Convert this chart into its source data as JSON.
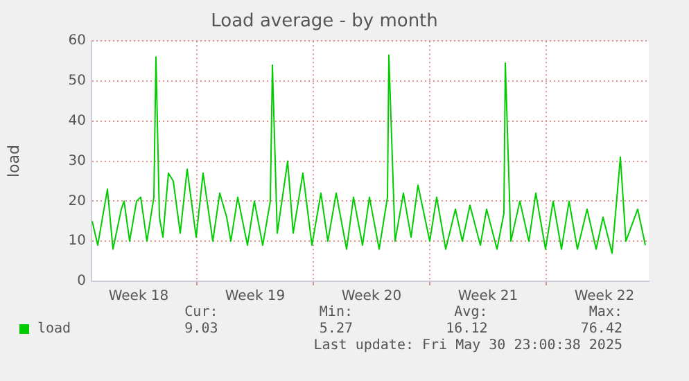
{
  "chart_data": {
    "type": "line",
    "title": "Load average - by month",
    "ylabel": "load",
    "x": [
      "2025-04-28T17:00",
      "2025-04-29T01:00",
      "2025-04-29T15:00",
      "2025-04-29T23:00",
      "2025-04-30T11:00",
      "2025-04-30T15:00",
      "2025-04-30T23:00",
      "2025-05-01T09:00",
      "2025-05-01T15:00",
      "2025-05-02T00:00",
      "2025-05-02T10:00",
      "2025-05-02T13:00",
      "2025-05-02T18:00",
      "2025-05-02T23:00",
      "2025-05-03T07:00",
      "2025-05-03T14:00",
      "2025-05-04T00:00",
      "2025-05-04T10:00",
      "2025-05-04T23:00",
      "2025-05-05T09:00",
      "2025-05-05T23:00",
      "2025-05-06T09:00",
      "2025-05-06T19:00",
      "2025-05-07T01:00",
      "2025-05-07T11:00",
      "2025-05-08T01:00",
      "2025-05-08T11:00",
      "2025-05-08T23:00",
      "2025-05-09T10:00",
      "2025-05-09T13:00",
      "2025-05-09T20:00",
      "2025-05-10T11:00",
      "2025-05-10T19:00",
      "2025-05-11T09:00",
      "2025-05-11T22:00",
      "2025-05-12T11:00",
      "2025-05-12T21:00",
      "2025-05-13T09:00",
      "2025-05-14T00:00",
      "2025-05-14T10:00",
      "2025-05-14T23:00",
      "2025-05-15T09:00",
      "2025-05-15T23:00",
      "2025-05-16T11:00",
      "2025-05-16T13:00",
      "2025-05-16T22:00",
      "2025-05-17T10:00",
      "2025-05-17T21:00",
      "2025-05-18T07:00",
      "2025-05-19T00:00",
      "2025-05-19T10:00",
      "2025-05-19T23:00",
      "2025-05-20T13:00",
      "2025-05-20T23:00",
      "2025-05-21T10:00",
      "2025-05-22T01:00",
      "2025-05-22T10:00",
      "2025-05-23T01:00",
      "2025-05-23T11:00",
      "2025-05-23T13:00",
      "2025-05-23T21:00",
      "2025-05-24T10:00",
      "2025-05-24T23:00",
      "2025-05-25T09:00",
      "2025-05-25T23:00",
      "2025-05-26T10:00",
      "2025-05-26T22:00",
      "2025-05-27T09:00",
      "2025-05-27T21:00",
      "2025-05-28T11:00",
      "2025-05-29T00:00",
      "2025-05-29T10:00",
      "2025-05-29T23:00",
      "2025-05-30T11:00",
      "2025-05-30T19:00",
      "2025-05-31T12:00",
      "2025-05-31T23:00"
    ],
    "series": [
      {
        "name": "load",
        "color": "#00cc00",
        "values": [
          15,
          9,
          23,
          8,
          18,
          20,
          10,
          20,
          21,
          10,
          21,
          56,
          16,
          11,
          27,
          25,
          12,
          28,
          11,
          27,
          10,
          22,
          16,
          10,
          21,
          9,
          20,
          9,
          20,
          54,
          12,
          30,
          12,
          27,
          9,
          22,
          10,
          22,
          8,
          21,
          9,
          21,
          8,
          21,
          56.5,
          10,
          22,
          11,
          24,
          10,
          21,
          8,
          18,
          10,
          19,
          9,
          18,
          8,
          17,
          54.5,
          10,
          20,
          10,
          22,
          8,
          20,
          8,
          20,
          8,
          18,
          8,
          16,
          7,
          31,
          10,
          18,
          9
        ]
      }
    ],
    "xlim": [
      "2025-04-28T16:00",
      "2025-06-01T04:00"
    ],
    "xticks": [
      {
        "value": "2025-05-01T12:00",
        "label": "Week 18"
      },
      {
        "value": "2025-05-05T00:00",
        "label": null
      },
      {
        "value": "2025-05-08T12:00",
        "label": "Week 19"
      },
      {
        "value": "2025-05-12T00:00",
        "label": null
      },
      {
        "value": "2025-05-15T12:00",
        "label": "Week 20"
      },
      {
        "value": "2025-05-19T00:00",
        "label": null
      },
      {
        "value": "2025-05-22T12:00",
        "label": "Week 21"
      },
      {
        "value": "2025-05-26T00:00",
        "label": null
      },
      {
        "value": "2025-05-29T12:00",
        "label": "Week 22"
      }
    ],
    "ylim": [
      0,
      60
    ],
    "yticks": [
      0,
      10,
      20,
      30,
      40,
      50,
      60
    ],
    "grid": true,
    "legend": "bottom left",
    "marker": "none",
    "line_style": "solid",
    "annotations": [
      "Cur:",
      "Min:",
      "Avg:",
      "Max:",
      "9.03",
      "5.27",
      "16.12",
      "76.42",
      "Last update: Fri May 30 23:00:38 2025"
    ]
  }
}
